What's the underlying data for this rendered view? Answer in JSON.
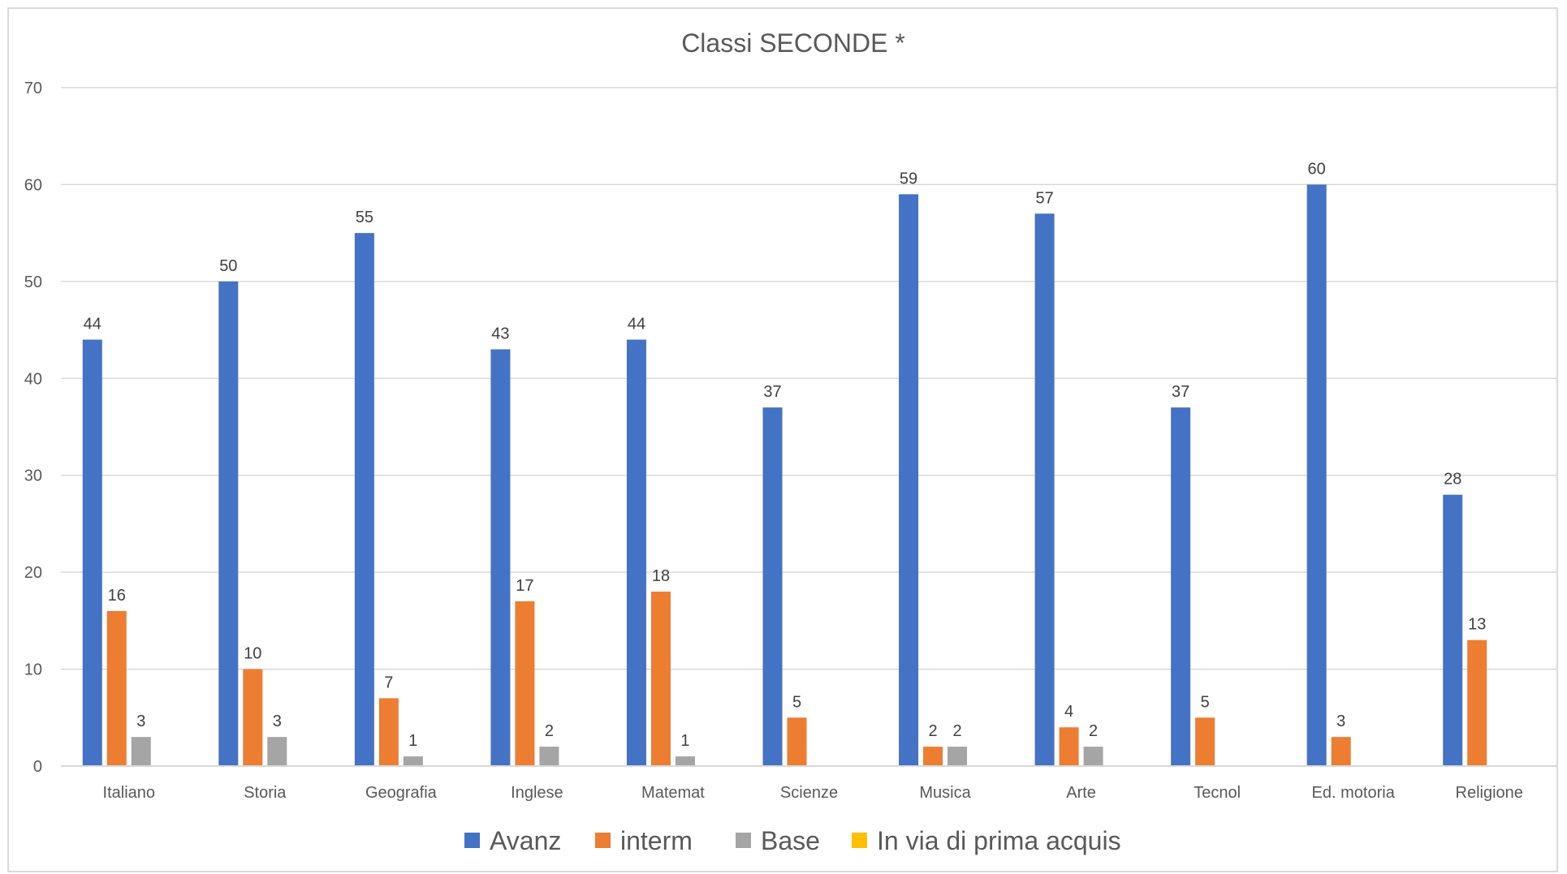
{
  "chart_data": {
    "type": "bar",
    "title": "Classi SECONDE *",
    "categories": [
      "Italiano",
      "Storia",
      "Geografia",
      "Inglese",
      "Matemat",
      "Scienze",
      "Musica",
      "Arte",
      "Tecnol",
      "Ed. motoria",
      "Religione"
    ],
    "series": [
      {
        "name": "Avanz",
        "color": "#4472C4",
        "values": [
          44,
          50,
          55,
          43,
          44,
          37,
          59,
          57,
          37,
          60,
          28
        ]
      },
      {
        "name": "interm",
        "color": "#ED7D31",
        "values": [
          16,
          10,
          7,
          17,
          18,
          5,
          2,
          4,
          5,
          3,
          13
        ]
      },
      {
        "name": "Base",
        "color": "#A5A5A5",
        "values": [
          3,
          3,
          1,
          2,
          1,
          null,
          2,
          2,
          null,
          null,
          null
        ]
      },
      {
        "name": "In via di prima acquis",
        "color": "#FFC000",
        "values": [
          null,
          null,
          null,
          null,
          null,
          null,
          null,
          null,
          null,
          null,
          null
        ]
      }
    ],
    "ylim": [
      0,
      70
    ],
    "yticks": [
      0,
      10,
      20,
      30,
      40,
      50,
      60,
      70
    ],
    "grid": true,
    "legend_position": "bottom"
  }
}
